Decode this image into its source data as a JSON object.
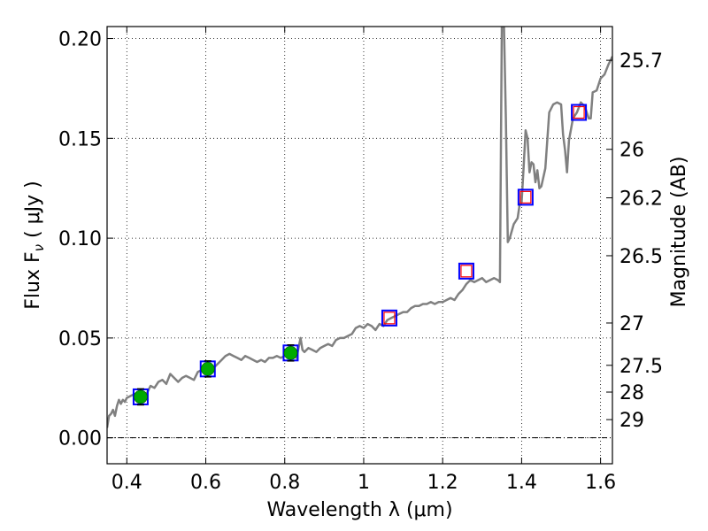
{
  "chart_data": {
    "type": "line",
    "xlabel": "Wavelength  λ (μm)",
    "ylabel": "Flux  F",
    "ylabel_sub": "ν",
    "ylabel_unit": " ( μJy )",
    "y2label": "Magnitude (AB)",
    "xlim": [
      0.35,
      1.63
    ],
    "ylim": [
      -0.013,
      0.206
    ],
    "grid": true,
    "grid_style": "dotted",
    "zero_line": true,
    "x_ticks": [
      {
        "value": 0.4,
        "label": "0.4"
      },
      {
        "value": 0.6,
        "label": "0.6"
      },
      {
        "value": 0.8,
        "label": "0.8"
      },
      {
        "value": 1.0,
        "label": "1"
      },
      {
        "value": 1.2,
        "label": "1.2"
      },
      {
        "value": 1.4,
        "label": "1.4"
      },
      {
        "value": 1.6,
        "label": "1.6"
      }
    ],
    "y_ticks": [
      {
        "value": 0.0,
        "label": "0.00"
      },
      {
        "value": 0.05,
        "label": "0.05"
      },
      {
        "value": 0.1,
        "label": "0.10"
      },
      {
        "value": 0.15,
        "label": "0.15"
      },
      {
        "value": 0.2,
        "label": "0.20"
      }
    ],
    "y2_ticks": [
      {
        "flux": 0.1891,
        "label": "25.7"
      },
      {
        "flux": 0.1445,
        "label": "26"
      },
      {
        "flux": 0.1202,
        "label": "26.2"
      },
      {
        "flux": 0.0912,
        "label": "26.5"
      },
      {
        "flux": 0.0575,
        "label": "27"
      },
      {
        "flux": 0.0363,
        "label": "27.5"
      },
      {
        "flux": 0.0229,
        "label": "28"
      },
      {
        "flux": 0.0091,
        "label": "29"
      }
    ],
    "series": [
      {
        "type": "line",
        "color": "#808080",
        "points": [
          [
            0.35,
            0.005
          ],
          [
            0.355,
            0.011
          ],
          [
            0.36,
            0.012
          ],
          [
            0.365,
            0.014
          ],
          [
            0.37,
            0.011
          ],
          [
            0.375,
            0.016
          ],
          [
            0.38,
            0.019
          ],
          [
            0.385,
            0.017
          ],
          [
            0.39,
            0.019
          ],
          [
            0.395,
            0.018
          ],
          [
            0.4,
            0.02
          ],
          [
            0.41,
            0.021
          ],
          [
            0.42,
            0.022
          ],
          [
            0.43,
            0.022
          ],
          [
            0.44,
            0.023
          ],
          [
            0.45,
            0.022
          ],
          [
            0.46,
            0.026
          ],
          [
            0.47,
            0.025
          ],
          [
            0.48,
            0.028
          ],
          [
            0.49,
            0.029
          ],
          [
            0.5,
            0.027
          ],
          [
            0.51,
            0.032
          ],
          [
            0.52,
            0.03
          ],
          [
            0.53,
            0.028
          ],
          [
            0.54,
            0.03
          ],
          [
            0.55,
            0.031
          ],
          [
            0.56,
            0.03
          ],
          [
            0.57,
            0.029
          ],
          [
            0.58,
            0.033
          ],
          [
            0.59,
            0.034
          ],
          [
            0.6,
            0.035
          ],
          [
            0.61,
            0.036
          ],
          [
            0.62,
            0.035
          ],
          [
            0.63,
            0.037
          ],
          [
            0.64,
            0.039
          ],
          [
            0.65,
            0.041
          ],
          [
            0.66,
            0.042
          ],
          [
            0.67,
            0.041
          ],
          [
            0.68,
            0.04
          ],
          [
            0.69,
            0.039
          ],
          [
            0.7,
            0.041
          ],
          [
            0.71,
            0.04
          ],
          [
            0.72,
            0.039
          ],
          [
            0.73,
            0.038
          ],
          [
            0.74,
            0.039
          ],
          [
            0.75,
            0.038
          ],
          [
            0.76,
            0.04
          ],
          [
            0.77,
            0.04
          ],
          [
            0.78,
            0.041
          ],
          [
            0.79,
            0.04
          ],
          [
            0.8,
            0.041
          ],
          [
            0.81,
            0.042
          ],
          [
            0.82,
            0.043
          ],
          [
            0.83,
            0.04
          ],
          [
            0.84,
            0.05
          ],
          [
            0.845,
            0.044
          ],
          [
            0.85,
            0.043
          ],
          [
            0.86,
            0.045
          ],
          [
            0.87,
            0.044
          ],
          [
            0.88,
            0.043
          ],
          [
            0.89,
            0.045
          ],
          [
            0.9,
            0.046
          ],
          [
            0.91,
            0.047
          ],
          [
            0.92,
            0.046
          ],
          [
            0.93,
            0.049
          ],
          [
            0.94,
            0.05
          ],
          [
            0.95,
            0.05
          ],
          [
            0.96,
            0.051
          ],
          [
            0.97,
            0.052
          ],
          [
            0.98,
            0.055
          ],
          [
            0.99,
            0.056
          ],
          [
            1.0,
            0.055
          ],
          [
            1.01,
            0.057
          ],
          [
            1.02,
            0.056
          ],
          [
            1.03,
            0.054
          ],
          [
            1.04,
            0.057
          ],
          [
            1.05,
            0.056
          ],
          [
            1.06,
            0.059
          ],
          [
            1.07,
            0.06
          ],
          [
            1.08,
            0.061
          ],
          [
            1.09,
            0.062
          ],
          [
            1.1,
            0.063
          ],
          [
            1.11,
            0.063
          ],
          [
            1.12,
            0.065
          ],
          [
            1.13,
            0.066
          ],
          [
            1.14,
            0.066
          ],
          [
            1.15,
            0.067
          ],
          [
            1.16,
            0.067
          ],
          [
            1.17,
            0.068
          ],
          [
            1.18,
            0.067
          ],
          [
            1.19,
            0.068
          ],
          [
            1.2,
            0.068
          ],
          [
            1.21,
            0.069
          ],
          [
            1.22,
            0.07
          ],
          [
            1.23,
            0.069
          ],
          [
            1.24,
            0.072
          ],
          [
            1.25,
            0.074
          ],
          [
            1.26,
            0.077
          ],
          [
            1.27,
            0.079
          ],
          [
            1.28,
            0.078
          ],
          [
            1.29,
            0.079
          ],
          [
            1.3,
            0.08
          ],
          [
            1.31,
            0.078
          ],
          [
            1.32,
            0.079
          ],
          [
            1.33,
            0.08
          ],
          [
            1.34,
            0.079
          ],
          [
            1.345,
            0.078
          ],
          [
            1.35,
            0.21
          ],
          [
            1.355,
            0.21
          ],
          [
            1.36,
            0.16
          ],
          [
            1.365,
            0.098
          ],
          [
            1.37,
            0.1
          ],
          [
            1.38,
            0.107
          ],
          [
            1.39,
            0.11
          ],
          [
            1.395,
            0.117
          ],
          [
            1.4,
            0.118
          ],
          [
            1.405,
            0.135
          ],
          [
            1.41,
            0.154
          ],
          [
            1.415,
            0.15
          ],
          [
            1.42,
            0.133
          ],
          [
            1.425,
            0.138
          ],
          [
            1.43,
            0.137
          ],
          [
            1.435,
            0.128
          ],
          [
            1.44,
            0.134
          ],
          [
            1.445,
            0.125
          ],
          [
            1.45,
            0.126
          ],
          [
            1.46,
            0.135
          ],
          [
            1.47,
            0.163
          ],
          [
            1.48,
            0.167
          ],
          [
            1.49,
            0.168
          ],
          [
            1.5,
            0.167
          ],
          [
            1.505,
            0.152
          ],
          [
            1.51,
            0.144
          ],
          [
            1.515,
            0.133
          ],
          [
            1.52,
            0.149
          ],
          [
            1.53,
            0.16
          ],
          [
            1.54,
            0.163
          ],
          [
            1.55,
            0.168
          ],
          [
            1.56,
            0.166
          ],
          [
            1.57,
            0.16
          ],
          [
            1.575,
            0.16
          ],
          [
            1.58,
            0.173
          ],
          [
            1.59,
            0.174
          ],
          [
            1.6,
            0.18
          ],
          [
            1.61,
            0.182
          ],
          [
            1.62,
            0.187
          ],
          [
            1.63,
            0.191
          ]
        ]
      },
      {
        "type": "scatter",
        "name": "model-blue-squares",
        "color": "#0000ff",
        "marker": "square",
        "x": [
          0.435,
          0.605,
          0.815,
          1.065,
          1.26,
          1.41,
          1.545
        ],
        "y": [
          0.0205,
          0.0345,
          0.0425,
          0.06,
          0.0835,
          0.1205,
          0.163
        ]
      },
      {
        "type": "scatter",
        "name": "model-red-squares",
        "color": "#ff0000",
        "marker": "square",
        "x": [
          1.065,
          1.26,
          1.41,
          1.545
        ],
        "y": [
          0.06,
          0.0835,
          0.1205,
          0.163
        ]
      },
      {
        "type": "errorbar",
        "name": "observed-green-points",
        "color": "#00aa00",
        "marker": "circle",
        "x": [
          0.435,
          0.605,
          0.815
        ],
        "y": [
          0.0205,
          0.0345,
          0.0425
        ],
        "yerr": [
          0.004,
          0.004,
          0.004
        ]
      }
    ]
  }
}
